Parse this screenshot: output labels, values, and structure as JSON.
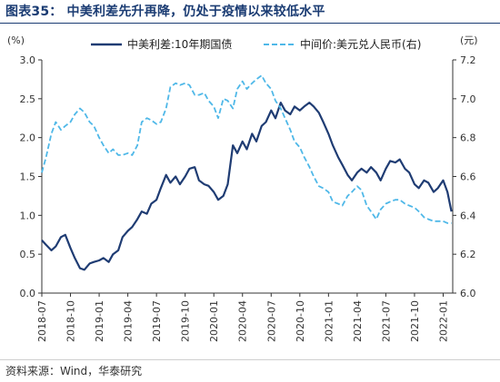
{
  "header": {
    "title": "图表35： 中美利差先升再降，仍处于疫情以来较低水平"
  },
  "footer": {
    "source": "资料来源：Wind，华泰研究"
  },
  "colors": {
    "spread_line": "#1f3c73",
    "fx_line": "#4fb8e8",
    "title": "#1b3c73",
    "axis": "#333333"
  },
  "chart_data": {
    "type": "line",
    "title": "",
    "x_unit": "month",
    "xlim": [
      "2018-07",
      "2022-02"
    ],
    "x_ticks": [
      "2018-07",
      "2018-10",
      "2019-01",
      "2019-04",
      "2019-07",
      "2019-10",
      "2020-01",
      "2020-04",
      "2020-07",
      "2020-10",
      "2021-01",
      "2021-04",
      "2021-07",
      "2021-10",
      "2022-01"
    ],
    "y_left": {
      "unit_label": "(%)",
      "ylim": [
        0.0,
        3.0
      ],
      "ticks": [
        "0.0",
        "0.5",
        "1.0",
        "1.5",
        "2.0",
        "2.5",
        "3.0"
      ]
    },
    "y_right": {
      "unit_label": "(元)",
      "ylim": [
        6.0,
        7.2
      ],
      "ticks": [
        "6.0",
        "6.2",
        "6.4",
        "6.6",
        "6.8",
        "7.0",
        "7.2"
      ]
    },
    "grid": false,
    "legend_position": "top",
    "series": [
      {
        "name": "中美利差:10年期国债",
        "axis": "left",
        "style": "solid",
        "points": [
          [
            "2018-07-01",
            0.68
          ],
          [
            "2018-07-15",
            0.62
          ],
          [
            "2018-08-01",
            0.55
          ],
          [
            "2018-08-15",
            0.6
          ],
          [
            "2018-09-01",
            0.72
          ],
          [
            "2018-09-15",
            0.75
          ],
          [
            "2018-10-01",
            0.58
          ],
          [
            "2018-10-15",
            0.45
          ],
          [
            "2018-11-01",
            0.32
          ],
          [
            "2018-11-15",
            0.3
          ],
          [
            "2018-12-01",
            0.38
          ],
          [
            "2018-12-15",
            0.4
          ],
          [
            "2019-01-01",
            0.42
          ],
          [
            "2019-01-15",
            0.45
          ],
          [
            "2019-02-01",
            0.4
          ],
          [
            "2019-02-15",
            0.5
          ],
          [
            "2019-03-01",
            0.55
          ],
          [
            "2019-03-15",
            0.72
          ],
          [
            "2019-04-01",
            0.8
          ],
          [
            "2019-04-15",
            0.85
          ],
          [
            "2019-05-01",
            0.95
          ],
          [
            "2019-05-15",
            1.05
          ],
          [
            "2019-06-01",
            1.02
          ],
          [
            "2019-06-15",
            1.15
          ],
          [
            "2019-07-01",
            1.2
          ],
          [
            "2019-07-15",
            1.35
          ],
          [
            "2019-08-01",
            1.52
          ],
          [
            "2019-08-15",
            1.42
          ],
          [
            "2019-09-01",
            1.5
          ],
          [
            "2019-09-15",
            1.4
          ],
          [
            "2019-10-01",
            1.5
          ],
          [
            "2019-10-15",
            1.6
          ],
          [
            "2019-11-01",
            1.62
          ],
          [
            "2019-11-15",
            1.45
          ],
          [
            "2019-12-01",
            1.4
          ],
          [
            "2019-12-15",
            1.38
          ],
          [
            "2020-01-01",
            1.3
          ],
          [
            "2020-01-15",
            1.2
          ],
          [
            "2020-02-01",
            1.25
          ],
          [
            "2020-02-15",
            1.4
          ],
          [
            "2020-03-01",
            1.9
          ],
          [
            "2020-03-15",
            1.8
          ],
          [
            "2020-04-01",
            1.95
          ],
          [
            "2020-04-15",
            1.85
          ],
          [
            "2020-05-01",
            2.05
          ],
          [
            "2020-05-15",
            1.95
          ],
          [
            "2020-06-01",
            2.15
          ],
          [
            "2020-06-15",
            2.2
          ],
          [
            "2020-07-01",
            2.35
          ],
          [
            "2020-07-15",
            2.25
          ],
          [
            "2020-08-01",
            2.45
          ],
          [
            "2020-08-15",
            2.35
          ],
          [
            "2020-09-01",
            2.3
          ],
          [
            "2020-09-15",
            2.4
          ],
          [
            "2020-10-01",
            2.35
          ],
          [
            "2020-10-15",
            2.4
          ],
          [
            "2020-11-01",
            2.45
          ],
          [
            "2020-11-15",
            2.4
          ],
          [
            "2020-12-01",
            2.32
          ],
          [
            "2020-12-15",
            2.2
          ],
          [
            "2021-01-01",
            2.05
          ],
          [
            "2021-01-15",
            1.9
          ],
          [
            "2021-02-01",
            1.75
          ],
          [
            "2021-02-15",
            1.65
          ],
          [
            "2021-03-01",
            1.52
          ],
          [
            "2021-03-15",
            1.45
          ],
          [
            "2021-04-01",
            1.55
          ],
          [
            "2021-04-15",
            1.6
          ],
          [
            "2021-05-01",
            1.55
          ],
          [
            "2021-05-15",
            1.62
          ],
          [
            "2021-06-01",
            1.55
          ],
          [
            "2021-06-15",
            1.45
          ],
          [
            "2021-07-01",
            1.6
          ],
          [
            "2021-07-15",
            1.7
          ],
          [
            "2021-08-01",
            1.68
          ],
          [
            "2021-08-15",
            1.72
          ],
          [
            "2021-09-01",
            1.6
          ],
          [
            "2021-09-15",
            1.55
          ],
          [
            "2021-10-01",
            1.4
          ],
          [
            "2021-10-15",
            1.35
          ],
          [
            "2021-11-01",
            1.45
          ],
          [
            "2021-11-15",
            1.42
          ],
          [
            "2021-12-01",
            1.3
          ],
          [
            "2021-12-15",
            1.35
          ],
          [
            "2022-01-01",
            1.45
          ],
          [
            "2022-01-15",
            1.3
          ],
          [
            "2022-01-28",
            1.05
          ]
        ]
      },
      {
        "name": "中间价:美元兑人民币(右)",
        "axis": "right",
        "style": "dashed",
        "points": [
          [
            "2018-07-01",
            6.62
          ],
          [
            "2018-07-15",
            6.7
          ],
          [
            "2018-08-01",
            6.82
          ],
          [
            "2018-08-15",
            6.88
          ],
          [
            "2018-09-01",
            6.84
          ],
          [
            "2018-09-15",
            6.86
          ],
          [
            "2018-10-01",
            6.88
          ],
          [
            "2018-10-15",
            6.92
          ],
          [
            "2018-11-01",
            6.95
          ],
          [
            "2018-11-15",
            6.93
          ],
          [
            "2018-12-01",
            6.88
          ],
          [
            "2018-12-15",
            6.86
          ],
          [
            "2019-01-01",
            6.8
          ],
          [
            "2019-01-15",
            6.76
          ],
          [
            "2019-02-01",
            6.72
          ],
          [
            "2019-02-15",
            6.74
          ],
          [
            "2019-03-01",
            6.71
          ],
          [
            "2019-03-15",
            6.71
          ],
          [
            "2019-04-01",
            6.72
          ],
          [
            "2019-04-15",
            6.71
          ],
          [
            "2019-05-01",
            6.76
          ],
          [
            "2019-05-15",
            6.88
          ],
          [
            "2019-06-01",
            6.9
          ],
          [
            "2019-06-15",
            6.89
          ],
          [
            "2019-07-01",
            6.87
          ],
          [
            "2019-07-15",
            6.88
          ],
          [
            "2019-08-01",
            6.95
          ],
          [
            "2019-08-15",
            7.06
          ],
          [
            "2019-09-01",
            7.08
          ],
          [
            "2019-09-15",
            7.07
          ],
          [
            "2019-10-01",
            7.08
          ],
          [
            "2019-10-15",
            7.07
          ],
          [
            "2019-11-01",
            7.02
          ],
          [
            "2019-11-15",
            7.02
          ],
          [
            "2019-12-01",
            7.03
          ],
          [
            "2019-12-15",
            6.99
          ],
          [
            "2020-01-01",
            6.96
          ],
          [
            "2020-01-15",
            6.9
          ],
          [
            "2020-02-01",
            7.0
          ],
          [
            "2020-02-15",
            6.99
          ],
          [
            "2020-03-01",
            6.95
          ],
          [
            "2020-03-15",
            7.05
          ],
          [
            "2020-04-01",
            7.09
          ],
          [
            "2020-04-15",
            7.05
          ],
          [
            "2020-05-01",
            7.08
          ],
          [
            "2020-05-15",
            7.1
          ],
          [
            "2020-06-01",
            7.12
          ],
          [
            "2020-06-15",
            7.08
          ],
          [
            "2020-07-01",
            7.05
          ],
          [
            "2020-07-15",
            6.99
          ],
          [
            "2020-08-01",
            6.95
          ],
          [
            "2020-08-15",
            6.9
          ],
          [
            "2020-09-01",
            6.84
          ],
          [
            "2020-09-15",
            6.78
          ],
          [
            "2020-10-01",
            6.75
          ],
          [
            "2020-10-15",
            6.7
          ],
          [
            "2020-11-01",
            6.65
          ],
          [
            "2020-11-15",
            6.6
          ],
          [
            "2020-12-01",
            6.55
          ],
          [
            "2020-12-15",
            6.54
          ],
          [
            "2021-01-01",
            6.52
          ],
          [
            "2021-01-15",
            6.47
          ],
          [
            "2021-02-01",
            6.46
          ],
          [
            "2021-02-15",
            6.45
          ],
          [
            "2021-03-01",
            6.5
          ],
          [
            "2021-03-15",
            6.52
          ],
          [
            "2021-04-01",
            6.55
          ],
          [
            "2021-04-15",
            6.53
          ],
          [
            "2021-05-01",
            6.45
          ],
          [
            "2021-05-15",
            6.42
          ],
          [
            "2021-06-01",
            6.38
          ],
          [
            "2021-06-15",
            6.43
          ],
          [
            "2021-07-01",
            6.46
          ],
          [
            "2021-07-15",
            6.47
          ],
          [
            "2021-08-01",
            6.48
          ],
          [
            "2021-08-15",
            6.48
          ],
          [
            "2021-09-01",
            6.46
          ],
          [
            "2021-09-15",
            6.45
          ],
          [
            "2021-10-01",
            6.44
          ],
          [
            "2021-10-15",
            6.42
          ],
          [
            "2021-11-01",
            6.39
          ],
          [
            "2021-11-15",
            6.38
          ],
          [
            "2021-12-01",
            6.37
          ],
          [
            "2021-12-15",
            6.37
          ],
          [
            "2022-01-01",
            6.37
          ],
          [
            "2022-01-15",
            6.36
          ],
          [
            "2022-01-28",
            6.36
          ]
        ]
      }
    ]
  }
}
